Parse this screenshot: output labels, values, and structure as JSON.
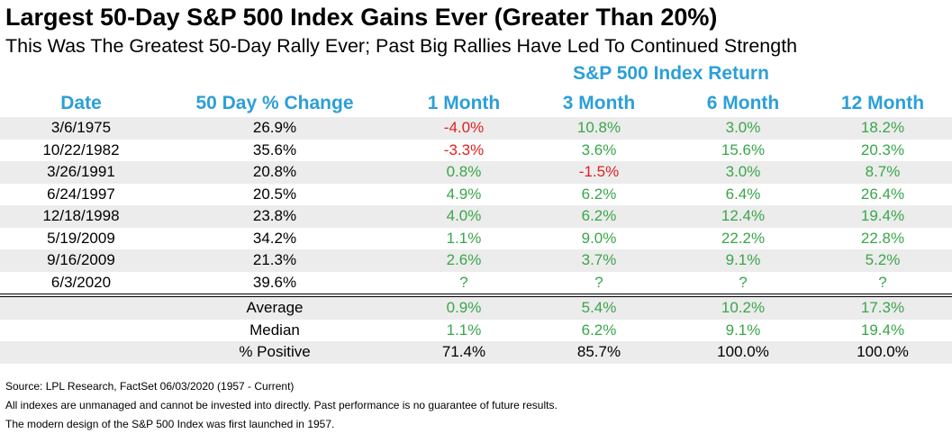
{
  "title": "Largest 50-Day S&P 500 Index Gains Ever (Greater Than 20%)",
  "subtitle": "This Was The Greatest 50-Day Rally Ever; Past Big Rallies Have Led To Continued Strength",
  "group_header": "S&P 500 Index Return",
  "columns": [
    "Date",
    "50 Day % Change",
    "1 Month",
    "3 Month",
    "6 Month",
    "12 Month"
  ],
  "colors": {
    "header_blue": "#2c9fd8",
    "positive": "#3aa64a",
    "negative": "#e02020",
    "shade": "#ececec"
  },
  "chart_data": {
    "type": "table",
    "title": "Largest 50-Day S&P 500 Index Gains Ever (Greater Than 20%)",
    "columns": [
      "Date",
      "50 Day % Change",
      "1 Month",
      "3 Month",
      "6 Month",
      "12 Month"
    ],
    "rows": [
      [
        "3/6/1975",
        "26.9%",
        "-4.0%",
        "10.8%",
        "3.0%",
        "18.2%"
      ],
      [
        "10/22/1982",
        "35.6%",
        "-3.3%",
        "3.6%",
        "15.6%",
        "20.3%"
      ],
      [
        "3/26/1991",
        "20.8%",
        "0.8%",
        "-1.5%",
        "3.0%",
        "8.7%"
      ],
      [
        "6/24/1997",
        "20.5%",
        "4.9%",
        "6.2%",
        "6.4%",
        "26.4%"
      ],
      [
        "12/18/1998",
        "23.8%",
        "4.0%",
        "6.2%",
        "12.4%",
        "19.4%"
      ],
      [
        "5/19/2009",
        "34.2%",
        "1.1%",
        "9.0%",
        "22.2%",
        "22.8%"
      ],
      [
        "9/16/2009",
        "21.3%",
        "2.6%",
        "3.7%",
        "9.1%",
        "5.2%"
      ],
      [
        "6/3/2020",
        "39.6%",
        "?",
        "?",
        "?",
        "?"
      ]
    ],
    "summary": [
      [
        "",
        "Average",
        "0.9%",
        "5.4%",
        "10.2%",
        "17.3%"
      ],
      [
        "",
        "Median",
        "1.1%",
        "6.2%",
        "9.1%",
        "19.4%"
      ],
      [
        "",
        "% Positive",
        "71.4%",
        "85.7%",
        "100.0%",
        "100.0%"
      ]
    ]
  },
  "footnotes": [
    "Source: LPL Research, FactSet 06/03/2020 (1957 - Current)",
    "All indexes are unmanaged and cannot be invested into directly. Past performance is no guarantee of future results.",
    "The modern design of the S&P 500 Index was first launched in 1957."
  ]
}
